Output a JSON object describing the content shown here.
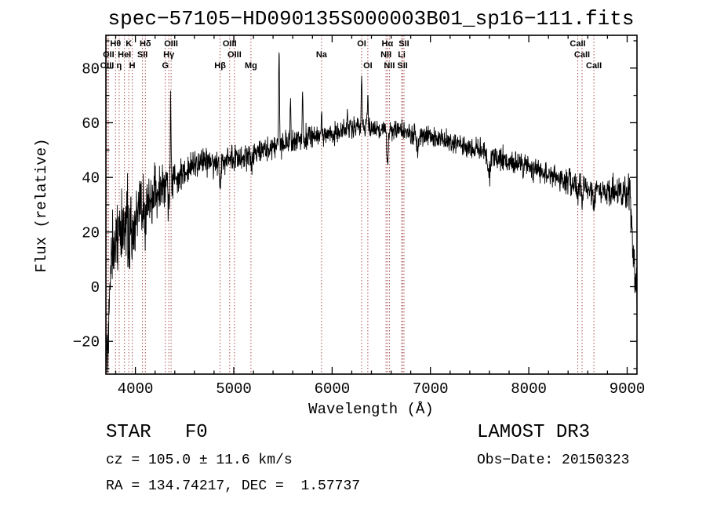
{
  "title": "spec−57105−HD090135S000003B01_sp16−111.fits",
  "axes": {
    "xlabel": "Wavelength (Å)",
    "ylabel": "Flux (relative)",
    "xlim": [
      3700,
      9100
    ],
    "ylim": [
      -32,
      92
    ],
    "xticks": [
      4000,
      5000,
      6000,
      7000,
      8000,
      9000
    ],
    "yticks": [
      -20,
      0,
      20,
      40,
      60,
      80
    ],
    "x_minor_step": 200,
    "y_minor_step": 10
  },
  "annotations": {
    "class_label": "STAR   F0",
    "survey": "LAMOST DR3",
    "cz": "cz = 105.0 ± 11.6 km/s",
    "obs_date": "Obs−Date: 20150323",
    "radec": "RA = 134.74217, DEC =  1.57737"
  },
  "chart_data": {
    "type": "line",
    "title": "spec−57105−HD090135S000003B01_sp16−111.fits",
    "series_name": "spectrum",
    "xlabel": "Wavelength (Å)",
    "ylabel": "Flux (relative)",
    "xlim": [
      3700,
      9100
    ],
    "ylim": [
      -32,
      92
    ],
    "line_color": "#000000",
    "marker_color": "#9b3030",
    "marker_label_color": "#8b2020",
    "sample_step": 2.5,
    "continuum": [
      [
        3700,
        0
      ],
      [
        3800,
        17
      ],
      [
        3900,
        23
      ],
      [
        4000,
        26
      ],
      [
        4100,
        29
      ],
      [
        4200,
        34
      ],
      [
        4300,
        37
      ],
      [
        4400,
        40
      ],
      [
        4500,
        43
      ],
      [
        4600,
        45
      ],
      [
        4700,
        45
      ],
      [
        4800,
        46
      ],
      [
        4900,
        47
      ],
      [
        5000,
        47
      ],
      [
        5100,
        48
      ],
      [
        5200,
        49
      ],
      [
        5300,
        50
      ],
      [
        5400,
        51
      ],
      [
        5500,
        52
      ],
      [
        5600,
        53
      ],
      [
        5700,
        54
      ],
      [
        5800,
        55
      ],
      [
        5900,
        55
      ],
      [
        6000,
        56
      ],
      [
        6100,
        57
      ],
      [
        6200,
        58
      ],
      [
        6300,
        59
      ],
      [
        6350,
        59
      ],
      [
        6400,
        58
      ],
      [
        6500,
        58
      ],
      [
        6600,
        57
      ],
      [
        6700,
        57
      ],
      [
        6800,
        56
      ],
      [
        6900,
        55
      ],
      [
        7000,
        55
      ],
      [
        7100,
        54
      ],
      [
        7200,
        53
      ],
      [
        7300,
        52
      ],
      [
        7400,
        51
      ],
      [
        7500,
        50
      ],
      [
        7600,
        48
      ],
      [
        7700,
        47
      ],
      [
        7800,
        46
      ],
      [
        7900,
        45
      ],
      [
        8000,
        44
      ],
      [
        8100,
        42
      ],
      [
        8200,
        41
      ],
      [
        8300,
        40
      ],
      [
        8400,
        39
      ],
      [
        8500,
        37
      ],
      [
        8600,
        36
      ],
      [
        8700,
        35
      ],
      [
        8800,
        34
      ],
      [
        8900,
        34
      ],
      [
        9000,
        34
      ],
      [
        9030,
        33
      ],
      [
        9060,
        15
      ],
      [
        9085,
        2
      ],
      [
        9100,
        0
      ]
    ],
    "noise_amp": [
      [
        3700,
        9
      ],
      [
        3800,
        8
      ],
      [
        3900,
        7
      ],
      [
        4000,
        6
      ],
      [
        4100,
        5
      ],
      [
        4300,
        4
      ],
      [
        4500,
        3
      ],
      [
        4800,
        2.5
      ],
      [
        5200,
        2.2
      ],
      [
        6000,
        1.8
      ],
      [
        6500,
        1.8
      ],
      [
        7000,
        1.8
      ],
      [
        7500,
        2
      ],
      [
        8000,
        2.2
      ],
      [
        8500,
        2.5
      ],
      [
        9000,
        3
      ],
      [
        9100,
        5
      ]
    ],
    "emission_lines": [
      {
        "wavelength": 4047,
        "height": 9,
        "sigma": 3
      },
      {
        "wavelength": 4358,
        "height": 30,
        "sigma": 4
      },
      {
        "wavelength": 5461,
        "height": 37,
        "sigma": 4
      },
      {
        "wavelength": 5577,
        "height": 16,
        "sigma": 4
      },
      {
        "wavelength": 5700,
        "height": 17,
        "sigma": 4
      },
      {
        "wavelength": 5893,
        "height": 9,
        "sigma": 4
      },
      {
        "wavelength": 6154,
        "height": 8,
        "sigma": 4
      },
      {
        "wavelength": 6300,
        "height": 17,
        "sigma": 4
      },
      {
        "wavelength": 6363,
        "height": 11,
        "sigma": 4
      }
    ],
    "absorption_lines": [
      {
        "wavelength": 3715,
        "depth": 30,
        "sigma": 12
      },
      {
        "wavelength": 3933,
        "depth": 12,
        "sigma": 6
      },
      {
        "wavelength": 3968,
        "depth": 10,
        "sigma": 6
      },
      {
        "wavelength": 4101,
        "depth": 9,
        "sigma": 7
      },
      {
        "wavelength": 4340,
        "depth": 8,
        "sigma": 7
      },
      {
        "wavelength": 4861,
        "depth": 10,
        "sigma": 8
      },
      {
        "wavelength": 5175,
        "depth": 4,
        "sigma": 9
      },
      {
        "wavelength": 6563,
        "depth": 11,
        "sigma": 8
      },
      {
        "wavelength": 6867,
        "depth": 5,
        "sigma": 10
      },
      {
        "wavelength": 7594,
        "depth": 7,
        "sigma": 12
      },
      {
        "wavelength": 8498,
        "depth": 5,
        "sigma": 6
      },
      {
        "wavelength": 8542,
        "depth": 6,
        "sigma": 7
      },
      {
        "wavelength": 8662,
        "depth": 5,
        "sigma": 7
      }
    ],
    "line_markers": [
      {
        "label": "Hθ",
        "wavelength": 3798,
        "row": 1
      },
      {
        "label": "K",
        "wavelength": 3933,
        "row": 1
      },
      {
        "label": "Hδ",
        "wavelength": 4101,
        "row": 1
      },
      {
        "label": "OIII",
        "wavelength": 4363,
        "row": 1
      },
      {
        "label": "OIII",
        "wavelength": 4959,
        "row": 1
      },
      {
        "label": "OI",
        "wavelength": 6300,
        "row": 1
      },
      {
        "label": "Hα",
        "wavelength": 6563,
        "row": 1
      },
      {
        "label": "SII",
        "wavelength": 6731,
        "row": 1
      },
      {
        "label": "CaII",
        "wavelength": 8498,
        "row": 1
      },
      {
        "label": "OII",
        "wavelength": 3727,
        "row": 2
      },
      {
        "label": "HeI",
        "wavelength": 3889,
        "row": 2
      },
      {
        "label": "SII",
        "wavelength": 4072,
        "row": 2
      },
      {
        "label": "Hγ",
        "wavelength": 4340,
        "row": 2
      },
      {
        "label": "OIII",
        "wavelength": 5007,
        "row": 2
      },
      {
        "label": "Na",
        "wavelength": 5893,
        "row": 2
      },
      {
        "label": "NII",
        "wavelength": 6548,
        "row": 2
      },
      {
        "label": "Li",
        "wavelength": 6708,
        "row": 2
      },
      {
        "label": "CaII",
        "wavelength": 8542,
        "row": 2
      },
      {
        "label": "OIII",
        "wavelength": 3712,
        "row": 3
      },
      {
        "label": "η",
        "wavelength": 3835,
        "row": 3
      },
      {
        "label": "H",
        "wavelength": 3968,
        "row": 3
      },
      {
        "label": "G",
        "wavelength": 4305,
        "row": 3
      },
      {
        "label": "Hβ",
        "wavelength": 4861,
        "row": 3
      },
      {
        "label": "Mg",
        "wavelength": 5175,
        "row": 3
      },
      {
        "label": "OI",
        "wavelength": 6363,
        "row": 3
      },
      {
        "label": "NII",
        "wavelength": 6583,
        "row": 3
      },
      {
        "label": "SII",
        "wavelength": 6716,
        "row": 3
      },
      {
        "label": "CaII",
        "wavelength": 8662,
        "row": 3
      }
    ]
  }
}
